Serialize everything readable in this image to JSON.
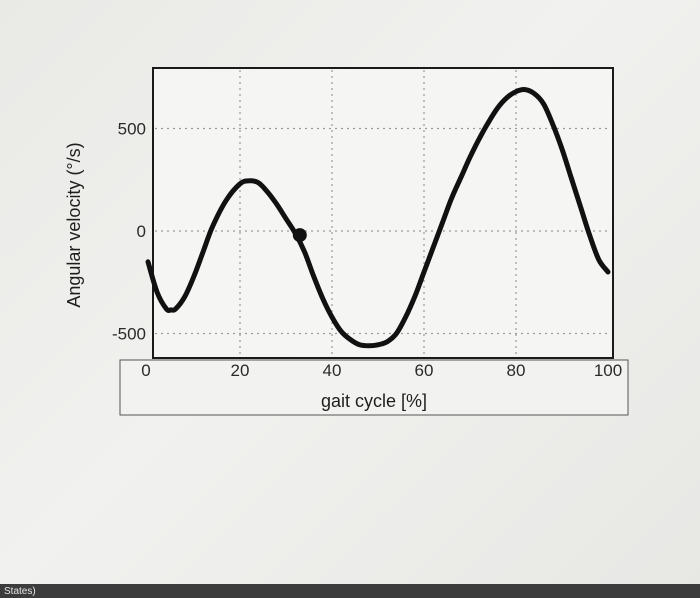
{
  "chart_data": {
    "type": "line",
    "xlabel": "gait cycle [%]",
    "ylabel": "Angular velocity (°/s)",
    "xlim": [
      0,
      100
    ],
    "ylim": [
      -550,
      700
    ],
    "xticks": [
      0,
      20,
      40,
      60,
      80,
      100
    ],
    "yticks": [
      -500,
      0,
      500
    ],
    "grid": true,
    "series": [
      {
        "x": [
          0,
          2,
          4,
          5,
          6,
          8,
          10,
          12,
          14,
          17,
          20,
          22,
          24,
          26,
          28,
          30,
          32,
          34,
          36,
          38,
          40,
          42,
          44,
          46,
          48,
          50,
          52,
          54,
          56,
          58,
          60,
          62,
          64,
          66,
          68,
          70,
          72,
          74,
          76,
          78,
          80,
          82,
          84,
          86,
          88,
          90,
          92,
          94,
          96,
          98,
          100
        ],
        "y": [
          -150,
          -300,
          -380,
          -385,
          -380,
          -320,
          -220,
          -100,
          20,
          150,
          230,
          245,
          235,
          190,
          130,
          60,
          -10,
          -100,
          -220,
          -330,
          -420,
          -490,
          -530,
          -555,
          -560,
          -555,
          -540,
          -500,
          -420,
          -320,
          -200,
          -80,
          40,
          160,
          260,
          360,
          450,
          530,
          600,
          650,
          680,
          690,
          670,
          620,
          520,
          400,
          260,
          120,
          -20,
          -140,
          -200
        ]
      }
    ],
    "marker": {
      "x": 33,
      "y": -20
    }
  },
  "footer": {
    "text": "States)"
  }
}
